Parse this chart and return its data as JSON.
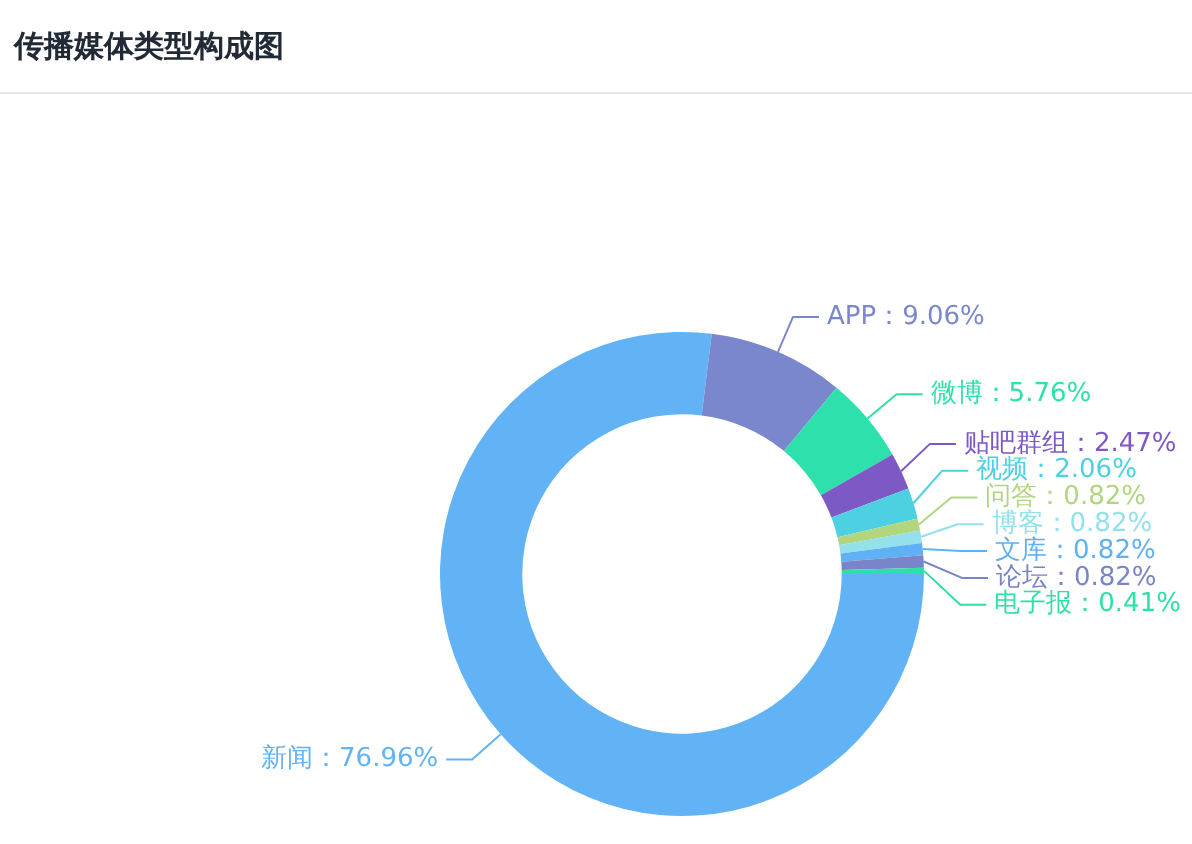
{
  "chart_data": {
    "type": "donut",
    "title": "传播媒体类型构成图",
    "categories": [
      "新闻",
      "APP",
      "微博",
      "贴吧群组",
      "视频",
      "问答",
      "博客",
      "文库",
      "论坛",
      "电子报"
    ],
    "values": [
      76.96,
      9.06,
      5.76,
      2.47,
      2.06,
      0.82,
      0.82,
      0.82,
      0.82,
      0.41
    ],
    "colors": [
      "#62b3f6",
      "#7b87cd",
      "#2ee0ac",
      "#7d59c5",
      "#4dd0e1",
      "#b2d67f",
      "#94e0eb",
      "#5fb0f4",
      "#7984c9",
      "#2edfaa"
    ],
    "value_labels": [
      "76.96%",
      "9.06%",
      "5.76%",
      "2.47%",
      "2.06%",
      "0.82%",
      "0.82%",
      "0.82%",
      "0.82%",
      "0.41%"
    ]
  }
}
